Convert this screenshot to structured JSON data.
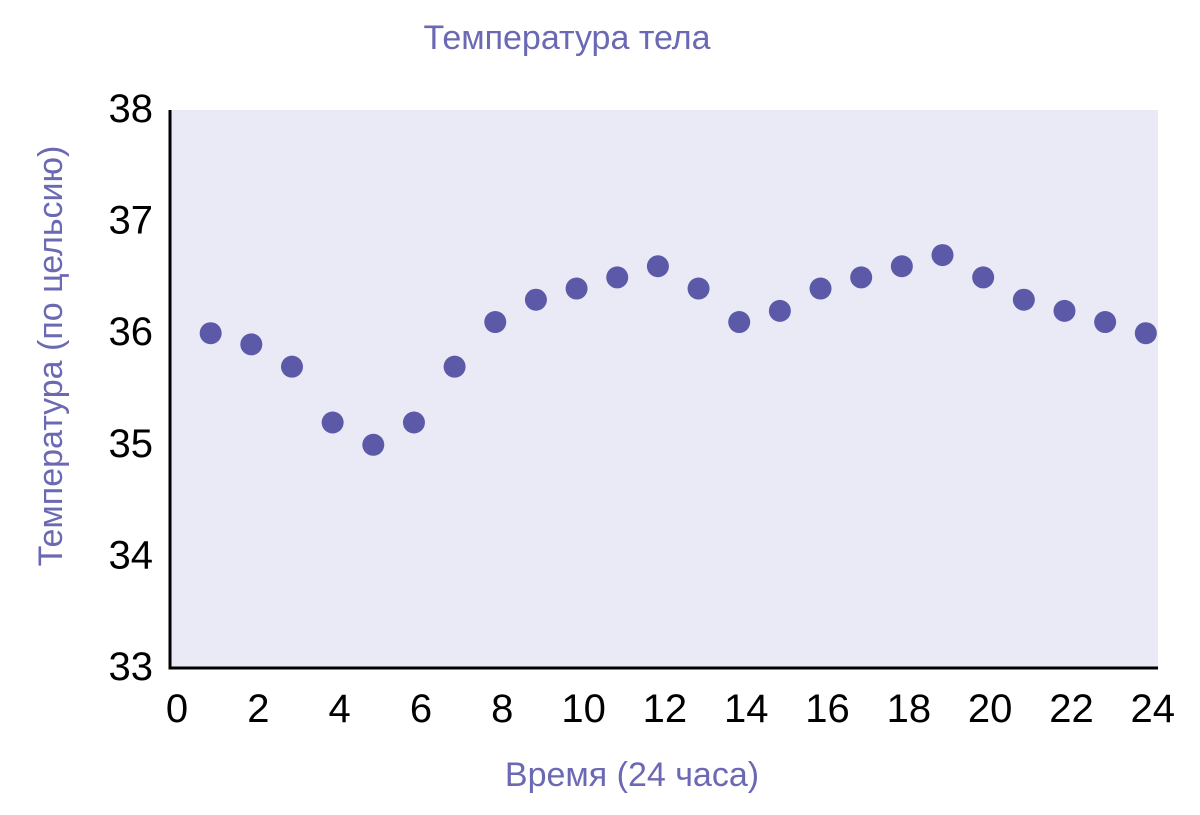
{
  "chart_data": {
    "type": "scatter",
    "title": "Температура тела",
    "xlabel": "Время (24 часа)",
    "ylabel": "Температура (по цельсию)",
    "xlim": [
      0,
      24.3
    ],
    "ylim": [
      33,
      38
    ],
    "x_ticks": [
      0,
      2,
      4,
      6,
      8,
      10,
      12,
      14,
      16,
      18,
      20,
      22,
      24
    ],
    "y_ticks": [
      33,
      34,
      35,
      36,
      37,
      38
    ],
    "grid": false,
    "legend": "none",
    "series": [
      {
        "x": [
          1,
          2,
          3,
          4,
          5,
          6,
          7,
          8,
          9,
          10,
          11,
          12,
          13,
          14,
          15,
          16,
          17,
          18,
          19,
          20,
          21,
          22,
          23,
          24
        ],
        "y": [
          36.0,
          35.9,
          35.7,
          35.2,
          35.0,
          35.2,
          35.7,
          36.1,
          36.3,
          36.4,
          36.5,
          36.6,
          36.4,
          36.1,
          36.2,
          36.4,
          36.5,
          36.6,
          36.7,
          36.5,
          36.3,
          36.2,
          36.1,
          36.0
        ]
      }
    ],
    "colors": {
      "point": "#5c59a8",
      "plot_background": "#eae9f6",
      "axis": "#000000",
      "label": "#6b69b3"
    }
  }
}
